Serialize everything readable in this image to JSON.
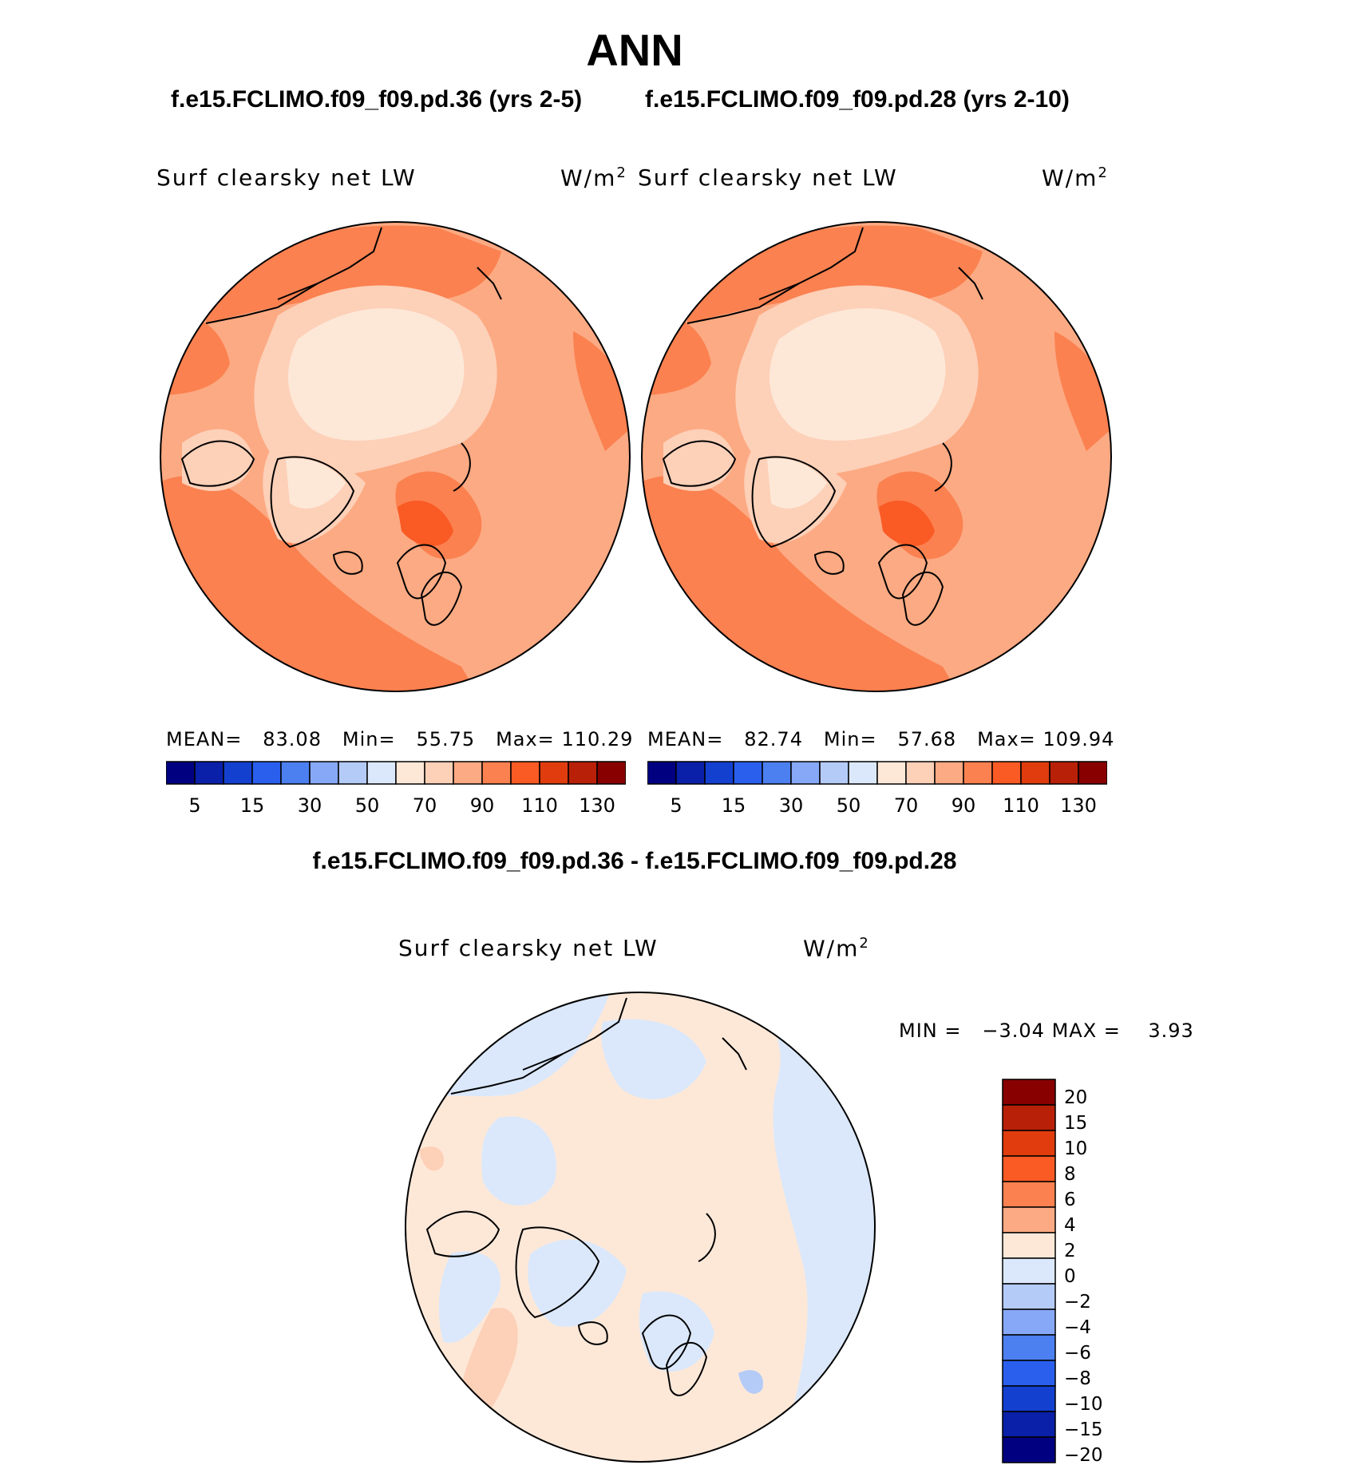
{
  "title": "ANN",
  "panels": [
    {
      "case_title": "f.e15.FCLIMO.f09_f09.pd.36 (yrs 2-5)",
      "variable": "Surf clearsky net LW",
      "units": "W/m",
      "units_sup": "2",
      "mean_label": "MEAN=",
      "mean": "83.08",
      "min_label": "Min=",
      "min": "55.75",
      "max_label": "Max=",
      "max": "110.29"
    },
    {
      "case_title": "f.e15.FCLIMO.f09_f09.pd.28 (yrs 2-10)",
      "variable": "Surf clearsky net LW",
      "units": "W/m",
      "units_sup": "2",
      "mean_label": "MEAN=",
      "mean": "82.74",
      "min_label": "Min=",
      "min": "57.68",
      "max_label": "Max=",
      "max": "109.94"
    }
  ],
  "diff_panel": {
    "title": "f.e15.FCLIMO.f09_f09.pd.36 - f.e15.FCLIMO.f09_f09.pd.28",
    "variable": "Surf clearsky net LW",
    "units": "W/m",
    "units_sup": "2",
    "min_label": "MIN =",
    "min": "−3.04",
    "max_label": "MAX =",
    "max": "3.93"
  },
  "colorbar_abs": {
    "colors": [
      "#000080",
      "#0a20a8",
      "#1440d0",
      "#2a5fee",
      "#4c7ff0",
      "#86a8f6",
      "#b4cbf8",
      "#dbe8fb",
      "#fde8d8",
      "#fdd0b8",
      "#fcaa83",
      "#fb8150",
      "#fa5a24",
      "#e03c0e",
      "#b82008",
      "#880000"
    ],
    "labels": [
      "5",
      "15",
      "30",
      "50",
      "70",
      "90",
      "110",
      "130"
    ]
  },
  "colorbar_diff": {
    "colors": [
      "#880000",
      "#b82008",
      "#e03c0e",
      "#fa5a24",
      "#fb8150",
      "#fcaa83",
      "#fde8d8",
      "#dbe8fb",
      "#b4cbf8",
      "#86a8f6",
      "#4c7ff0",
      "#2a5fee",
      "#1440d0",
      "#0a20a8",
      "#000080"
    ],
    "labels": [
      "20",
      "15",
      "10",
      "8",
      "6",
      "4",
      "2",
      "0",
      "−2",
      "−4",
      "−6",
      "−8",
      "−10",
      "−15",
      "−20"
    ]
  }
}
